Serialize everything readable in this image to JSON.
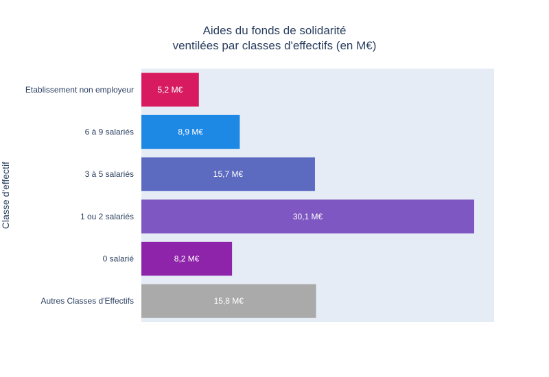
{
  "title_line1": "Aides du fonds de solidarité",
  "title_line2": "ventilées par classes d'effectifs (en M€)",
  "ylabel": "Classe d'effectif",
  "chart_data": {
    "type": "bar",
    "orientation": "horizontal",
    "title": "Aides du fonds de solidarité ventilées par classes d'effectifs (en M€)",
    "xlabel": "",
    "ylabel": "Classe d'effectif",
    "xlim": [
      0,
      31.9
    ],
    "grid": false,
    "plot_background": "#e5ecf6",
    "bars": [
      {
        "category": "Etablissement non employeur",
        "value": 5.2,
        "label": "5,2 M€",
        "color": "#d81b60"
      },
      {
        "category": "6 à 9 salariés",
        "value": 8.9,
        "label": "8,9 M€",
        "color": "#1e88e5"
      },
      {
        "category": "3 à 5 salariés",
        "value": 15.7,
        "label": "15,7 M€",
        "color": "#5c6bc0"
      },
      {
        "category": "1 ou 2 salariés",
        "value": 30.1,
        "label": "30,1 M€",
        "color": "#7e57c2"
      },
      {
        "category": "0 salarié",
        "value": 8.2,
        "label": "8,2 M€",
        "color": "#8e24aa"
      },
      {
        "category": "Autres Classes d'Effectifs",
        "value": 15.8,
        "label": "15,8 M€",
        "color": "#aaaaaa"
      }
    ]
  }
}
